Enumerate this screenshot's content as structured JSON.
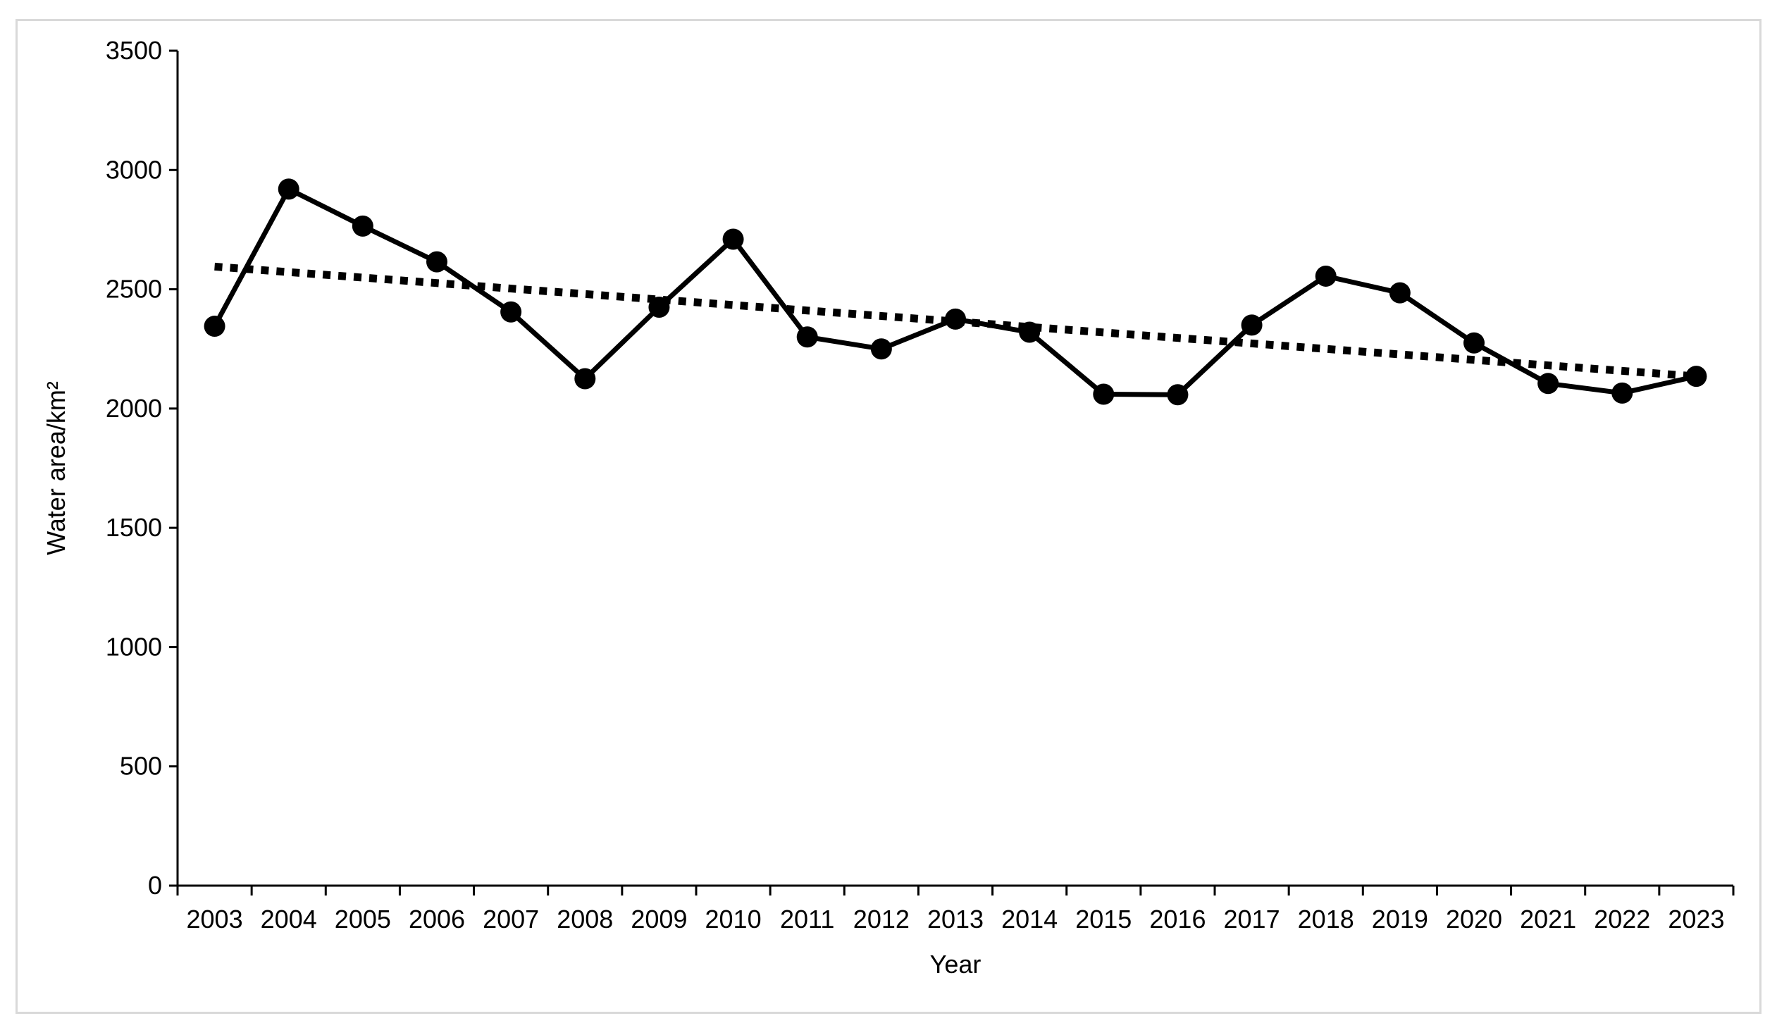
{
  "chart_data": {
    "type": "line",
    "title": "",
    "xlabel": "Year",
    "ylabel": "Water area/km²",
    "categories": [
      "2003",
      "2004",
      "2005",
      "2006",
      "2007",
      "2008",
      "2009",
      "2010",
      "2011",
      "2012",
      "2013",
      "2014",
      "2015",
      "2016",
      "2017",
      "2018",
      "2019",
      "2020",
      "2021",
      "2022",
      "2023"
    ],
    "series": [
      {
        "values": [
          2345,
          2920,
          2765,
          2615,
          2405,
          2125,
          2425,
          2710,
          2300,
          2250,
          2375,
          2320,
          2060,
          2058,
          2350,
          2555,
          2485,
          2275,
          2105,
          2065,
          2135
        ],
        "color": "#000000",
        "marker": "circle",
        "line_style": "solid"
      },
      {
        "values": [
          2595,
          2572,
          2549,
          2526,
          2503,
          2480,
          2457,
          2434,
          2411,
          2388,
          2365,
          2342,
          2319,
          2296,
          2273,
          2250,
          2227,
          2204,
          2181,
          2158,
          2135
        ],
        "color": "#000000",
        "marker": "none",
        "line_style": "dotted",
        "role": "linear-trendline"
      }
    ],
    "ylim": [
      0,
      3500
    ],
    "yticks": [
      0,
      500,
      1000,
      1500,
      2000,
      2500,
      3000,
      3500
    ],
    "ytick_labels": [
      "0",
      "500",
      "1000",
      "1500",
      "2000",
      "2500",
      "3000",
      "3500"
    ],
    "grid": false,
    "legend": "none"
  }
}
